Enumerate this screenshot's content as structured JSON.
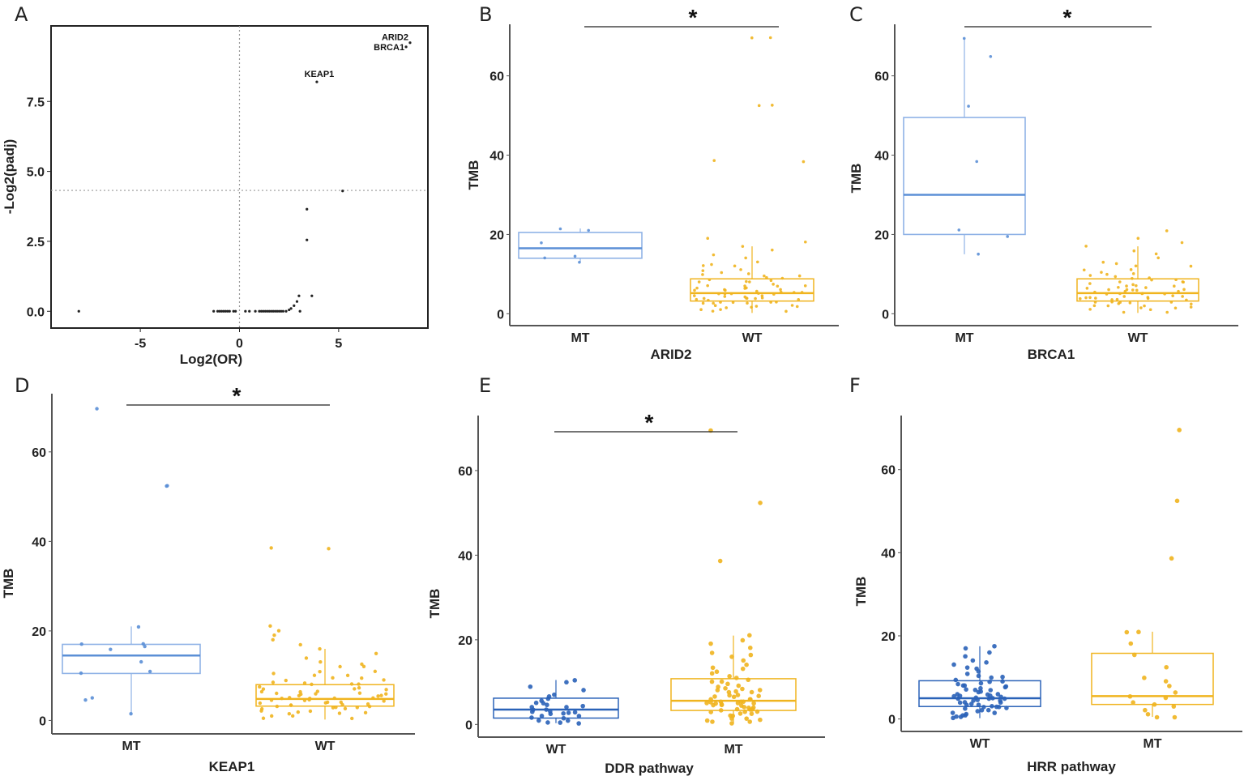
{
  "colors": {
    "mt_light": "#5b8fd6",
    "mt_dark": "#2a62b8",
    "wt_yellow": "#f0b41e",
    "axis": "#555555",
    "point_black": "#222222"
  },
  "chart_data": [
    {
      "panel": "A",
      "type": "scatter",
      "title": "",
      "xlabel": "Log2(OR)",
      "ylabel": "-Log2(padj)",
      "xlim": [
        -9.5,
        9.5
      ],
      "ylim": [
        -0.6,
        10.2
      ],
      "xticks": [
        -5,
        0,
        5
      ],
      "xtick_labels": [
        "-5",
        "0",
        "5"
      ],
      "yticks": [
        0,
        2.5,
        5,
        7.5
      ],
      "ytick_labels": [
        "0.0",
        "2.5",
        "5.0",
        "7.5"
      ],
      "hline": 4.32,
      "vline": 0,
      "labeled_points": [
        {
          "label": "ARID2",
          "x": 8.6,
          "y": 9.6
        },
        {
          "label": "BRCA1",
          "x": 8.4,
          "y": 9.45
        },
        {
          "label": "KEAP1",
          "x": 3.9,
          "y": 8.2
        }
      ],
      "points": [
        {
          "x": -8.1,
          "y": 0
        },
        {
          "x": -1.3,
          "y": 0
        },
        {
          "x": -1.1,
          "y": 0
        },
        {
          "x": -1.0,
          "y": 0
        },
        {
          "x": -0.9,
          "y": 0
        },
        {
          "x": -0.8,
          "y": 0
        },
        {
          "x": -0.7,
          "y": 0
        },
        {
          "x": -0.6,
          "y": 0
        },
        {
          "x": -0.5,
          "y": 0
        },
        {
          "x": -0.3,
          "y": 0
        },
        {
          "x": -0.2,
          "y": 0
        },
        {
          "x": 0.3,
          "y": 0
        },
        {
          "x": 0.5,
          "y": 0
        },
        {
          "x": 0.8,
          "y": 0
        },
        {
          "x": 1.0,
          "y": 0
        },
        {
          "x": 1.1,
          "y": 0
        },
        {
          "x": 1.2,
          "y": 0
        },
        {
          "x": 1.3,
          "y": 0
        },
        {
          "x": 1.4,
          "y": 0
        },
        {
          "x": 1.5,
          "y": 0
        },
        {
          "x": 1.6,
          "y": 0
        },
        {
          "x": 1.7,
          "y": 0
        },
        {
          "x": 1.8,
          "y": 0
        },
        {
          "x": 1.9,
          "y": 0
        },
        {
          "x": 2.0,
          "y": 0
        },
        {
          "x": 2.1,
          "y": 0
        },
        {
          "x": 2.2,
          "y": 0
        },
        {
          "x": 2.35,
          "y": 0
        },
        {
          "x": 2.5,
          "y": 0.05
        },
        {
          "x": 2.6,
          "y": 0.1
        },
        {
          "x": 2.75,
          "y": 0.2
        },
        {
          "x": 2.9,
          "y": 0.35
        },
        {
          "x": 3.0,
          "y": 0.55
        },
        {
          "x": 3.05,
          "y": 0
        },
        {
          "x": 3.4,
          "y": 2.55
        },
        {
          "x": 3.4,
          "y": 3.65
        },
        {
          "x": 3.65,
          "y": 0.55
        },
        {
          "x": 5.2,
          "y": 4.3
        }
      ]
    },
    {
      "panel": "B",
      "type": "boxplot",
      "xlabel": "ARID2",
      "ylabel": "TMB",
      "ylim": [
        -3,
        73
      ],
      "yticks": [
        0,
        20,
        40,
        60
      ],
      "ytick_labels": [
        "0",
        "20",
        "40",
        "60"
      ],
      "significance": "*",
      "groups": [
        {
          "name": "MT",
          "color": "light",
          "q1": 14,
          "median": 16.5,
          "q3": 20.5,
          "whisker_low": 13,
          "whisker_high": 21.5,
          "points": [
            13,
            14,
            14.5,
            18,
            21,
            21.5
          ]
        },
        {
          "name": "WT",
          "color": "yellow",
          "q1": 3.2,
          "median": 5.2,
          "q3": 8.8,
          "whisker_low": 0.2,
          "whisker_high": 17,
          "points": [
            69.5,
            69.5,
            52.5,
            52.5,
            38.5,
            38.5,
            19,
            18,
            17,
            16,
            15,
            14,
            13,
            12.5,
            12,
            11,
            10.5,
            10,
            9.5,
            9,
            8.5,
            8,
            8,
            7.5,
            7,
            7,
            6.5,
            6.5,
            6,
            6,
            6,
            5.5,
            5.5,
            5.5,
            5,
            5,
            5,
            5,
            4.5,
            4.5,
            4.5,
            4,
            4,
            4,
            3.5,
            3.5,
            3.5,
            3,
            3,
            3,
            2.5,
            2.5,
            2,
            2,
            1.5,
            1.5,
            1,
            1,
            0.5,
            0.5,
            9,
            11,
            8,
            6,
            4,
            3,
            7,
            5,
            10,
            12,
            2,
            6.5,
            4.2,
            5.8,
            3.8,
            7.2,
            8.4,
            9.6,
            2.8,
            1.8
          ]
        }
      ],
      "categories": [
        "MT",
        "WT"
      ]
    },
    {
      "panel": "C",
      "type": "boxplot",
      "xlabel": "BRCA1",
      "ylabel": "TMB",
      "ylim": [
        -3,
        73
      ],
      "yticks": [
        0,
        20,
        40,
        60
      ],
      "ytick_labels": [
        "0",
        "20",
        "40",
        "60"
      ],
      "significance": "*",
      "groups": [
        {
          "name": "MT",
          "color": "light",
          "q1": 20,
          "median": 30,
          "q3": 49.5,
          "whisker_low": 15,
          "whisker_high": 69.5,
          "points": [
            69.5,
            65,
            52.5,
            38.5,
            21,
            19.5,
            15
          ]
        },
        {
          "name": "WT",
          "color": "yellow",
          "q1": 3.2,
          "median": 5.2,
          "q3": 8.8,
          "whisker_low": 0.2,
          "whisker_high": 17,
          "points": [
            21,
            19,
            18,
            17,
            16,
            15,
            14,
            13,
            12.5,
            12,
            11,
            10.5,
            10,
            9.5,
            9,
            8.5,
            8,
            8,
            7.5,
            7,
            7,
            6.5,
            6.5,
            6,
            6,
            6,
            5.5,
            5.5,
            5.5,
            5,
            5,
            5,
            5,
            4.5,
            4.5,
            4.5,
            4,
            4,
            4,
            3.5,
            3.5,
            3.5,
            3,
            3,
            3,
            2.5,
            2.5,
            2,
            2,
            1.5,
            1.5,
            1,
            1,
            0.5,
            0.5,
            9,
            11,
            8,
            6,
            4,
            3,
            7,
            5,
            10,
            12,
            2,
            6.5,
            4.2,
            5.8,
            3.8,
            7.2,
            8.4,
            9.6,
            2.8,
            1.8
          ]
        }
      ],
      "categories": [
        "MT",
        "WT"
      ]
    },
    {
      "panel": "D",
      "type": "boxplot",
      "xlabel": "KEAP1",
      "ylabel": "TMB",
      "ylim": [
        -3,
        73
      ],
      "yticks": [
        0,
        20,
        40,
        60
      ],
      "ytick_labels": [
        "0",
        "20",
        "40",
        "60"
      ],
      "significance": "*",
      "groups": [
        {
          "name": "MT",
          "color": "light",
          "q1": 10.5,
          "median": 14.5,
          "q3": 17,
          "whisker_low": 1.5,
          "whisker_high": 21,
          "points": [
            69.5,
            52.5,
            52.5,
            21,
            17,
            17,
            16.5,
            16,
            13,
            11,
            10.5,
            5,
            4.5,
            1.5
          ]
        },
        {
          "name": "WT",
          "color": "yellow",
          "q1": 3.2,
          "median": 4.8,
          "q3": 8,
          "whisker_low": 0.2,
          "whisker_high": 16,
          "points": [
            38.5,
            38.5,
            21,
            20,
            19,
            18,
            17,
            16,
            15,
            14,
            13,
            12.5,
            12,
            11,
            10.5,
            10,
            9.5,
            9,
            8.5,
            8,
            8,
            7.5,
            7,
            7,
            6.5,
            6.5,
            6,
            6,
            6,
            5.5,
            5.5,
            5.5,
            5,
            5,
            5,
            5,
            4.5,
            4.5,
            4.5,
            4,
            4,
            4,
            3.5,
            3.5,
            3.5,
            3,
            3,
            3,
            2.5,
            2.5,
            2,
            2,
            1.5,
            1.5,
            1,
            1,
            0.5,
            0.5,
            9,
            11,
            8,
            6,
            4,
            3,
            7,
            5,
            10,
            12,
            2,
            6.5,
            4.2,
            5.8,
            3.8,
            7.2,
            8.4,
            9.6,
            2.8,
            1.8
          ]
        }
      ],
      "categories": [
        "MT",
        "WT"
      ]
    },
    {
      "panel": "E",
      "type": "boxplot",
      "xlabel": "DDR pathway",
      "ylabel": "TMB",
      "ylim": [
        -3,
        73
      ],
      "yticks": [
        0,
        20,
        40,
        60
      ],
      "ytick_labels": [
        "0",
        "20",
        "40",
        "60"
      ],
      "significance": "*",
      "groups": [
        {
          "name": "WT",
          "color": "dark",
          "q1": 1.5,
          "median": 3.5,
          "q3": 6.2,
          "whisker_low": 0.3,
          "whisker_high": 10.5,
          "points": [
            10.5,
            10,
            9,
            8,
            7,
            6.5,
            6,
            5.5,
            5,
            5,
            4.5,
            4,
            4,
            3.5,
            3.5,
            3,
            3,
            2.5,
            2.5,
            2,
            2,
            1.5,
            1.5,
            1,
            1,
            0.5,
            0.5,
            0.3,
            3.2,
            2.8,
            4.2
          ]
        },
        {
          "name": "MT",
          "color": "yellow",
          "q1": 3.3,
          "median": 5.6,
          "q3": 10.8,
          "whisker_low": 0.2,
          "whisker_high": 21,
          "points": [
            69.5,
            52.5,
            38.5,
            21,
            20,
            19,
            18,
            17,
            16.5,
            16,
            15,
            14,
            13.5,
            13,
            12.5,
            12,
            11.5,
            11,
            10.5,
            10,
            10,
            9.5,
            9,
            9,
            8.5,
            8.5,
            8,
            8,
            7.5,
            7.5,
            7,
            7,
            6.5,
            6.5,
            6,
            6,
            6,
            5.5,
            5.5,
            5.5,
            5,
            5,
            5,
            5,
            4.5,
            4.5,
            4.5,
            4,
            4,
            4,
            3.5,
            3.5,
            3.5,
            3,
            3,
            3,
            2.5,
            2.5,
            2,
            2,
            1.5,
            1.5,
            1,
            1,
            0.5,
            0.5,
            0.2,
            6.8,
            5.2,
            4.8,
            7.8,
            3.2
          ]
        }
      ],
      "categories": [
        "WT",
        "MT"
      ]
    },
    {
      "panel": "F",
      "type": "boxplot",
      "xlabel": "HRR pathway",
      "ylabel": "TMB",
      "ylim": [
        -3,
        73
      ],
      "yticks": [
        0,
        20,
        40,
        60
      ],
      "ytick_labels": [
        "0",
        "20",
        "40",
        "60"
      ],
      "significance": "",
      "groups": [
        {
          "name": "WT",
          "color": "dark",
          "q1": 3,
          "median": 5,
          "q3": 9.2,
          "whisker_low": 0.2,
          "whisker_high": 17.5,
          "points": [
            17.5,
            17,
            16,
            15,
            14,
            13.5,
            13,
            12.5,
            12,
            11.5,
            11,
            10.5,
            10,
            10,
            9.5,
            9,
            9,
            8.5,
            8.5,
            8,
            8,
            7.5,
            7.5,
            7,
            7,
            6.5,
            6.5,
            6,
            6,
            6,
            5.5,
            5.5,
            5.5,
            5,
            5,
            5,
            5,
            4.5,
            4.5,
            4.5,
            4,
            4,
            4,
            3.5,
            3.5,
            3.5,
            3,
            3,
            3,
            2.5,
            2.5,
            2,
            2,
            1.5,
            1.5,
            1,
            1,
            0.5,
            0.5,
            0.2,
            6.8,
            5.2,
            4.8,
            7.8,
            3.2,
            2.2,
            1.2
          ]
        },
        {
          "name": "MT",
          "color": "yellow",
          "q1": 3.5,
          "median": 5.5,
          "q3": 15.8,
          "whisker_low": 0.5,
          "whisker_high": 21,
          "points": [
            69.5,
            52.5,
            38.5,
            21,
            21,
            18,
            15.5,
            12.5,
            10,
            9,
            8,
            6.5,
            5.5,
            5,
            4,
            3.5,
            3,
            2,
            1,
            0.5,
            0.5
          ]
        }
      ],
      "categories": [
        "WT",
        "MT"
      ]
    }
  ]
}
